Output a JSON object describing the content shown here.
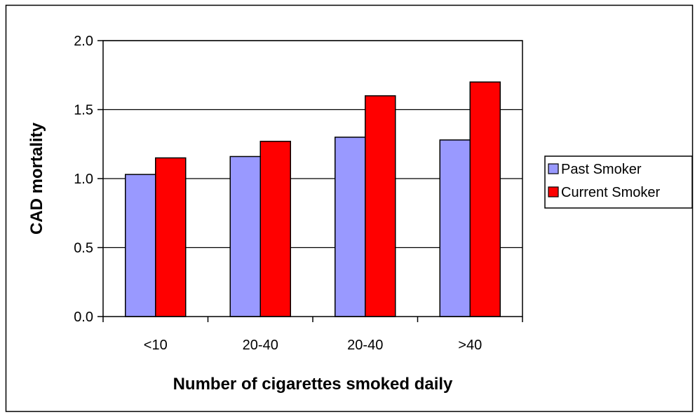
{
  "chart_data": {
    "type": "bar",
    "title": "",
    "xlabel": "Number of cigarettes smoked daily",
    "ylabel": "CAD mortality",
    "categories": [
      "<10",
      "20-40",
      "20-40",
      ">40"
    ],
    "series": [
      {
        "name": "Past Smoker",
        "values": [
          1.03,
          1.16,
          1.3,
          1.28
        ],
        "color": "#9999ff"
      },
      {
        "name": "Current Smoker",
        "values": [
          1.15,
          1.27,
          1.6,
          1.7
        ],
        "color": "#ff0000"
      }
    ],
    "ylim": [
      0,
      2.0
    ],
    "yticks": [
      "0.0",
      "0.5",
      "1.0",
      "1.5",
      "2.0"
    ],
    "grid": true,
    "legend_position": "right"
  }
}
